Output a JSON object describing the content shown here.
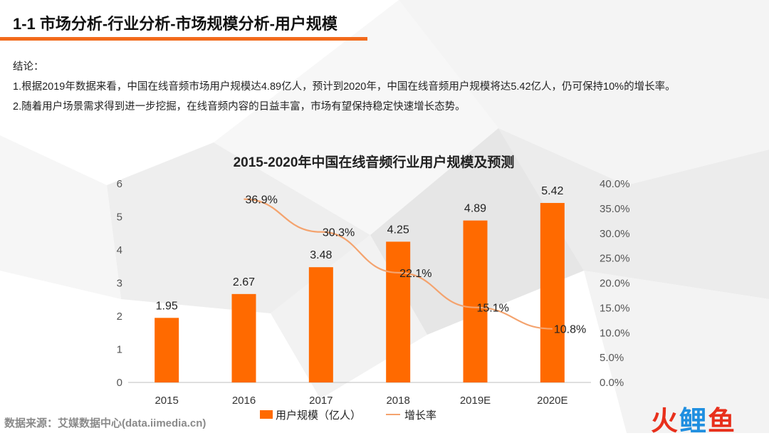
{
  "header": {
    "title": "1-1 市场分析-行业分析-市场规模分析-用户规模",
    "accent_color": "#f26a1b"
  },
  "conclusion": {
    "heading": "结论：",
    "lines": [
      "1.根据2019年数据来看，中国在线音频市场用户规模达4.89亿人，预计到2020年，中国在线音频用户规模将达5.42亿人，仍可保持10%的增长率。",
      "2.随着用户场景需求得到进一步挖掘，在线音频内容的日益丰富，市场有望保持稳定快速增长态势。"
    ]
  },
  "chart_data": {
    "type": "bar",
    "title": "2015-2020年中国在线音频行业用户规模及预测",
    "categories": [
      "2015",
      "2016",
      "2017",
      "2018",
      "2019E",
      "2020E"
    ],
    "series": [
      {
        "name": "用户规模（亿人）",
        "type": "bar",
        "axis": "left",
        "color": "#ff6a00",
        "values": [
          1.95,
          2.67,
          3.48,
          4.25,
          4.89,
          5.42
        ],
        "labels": [
          "1.95",
          "2.67",
          "3.48",
          "4.25",
          "4.89",
          "5.42"
        ]
      },
      {
        "name": "增长率",
        "type": "line",
        "axis": "right",
        "color": "#f4a36e",
        "values": [
          null,
          36.9,
          30.3,
          22.1,
          15.1,
          10.8
        ],
        "labels": [
          "",
          "36.9%",
          "30.3%",
          "22.1%",
          "15.1%",
          "10.8%"
        ]
      }
    ],
    "y_left": {
      "min": 0,
      "max": 6,
      "ticks": [
        "0",
        "1",
        "2",
        "3",
        "4",
        "5",
        "6"
      ]
    },
    "y_right": {
      "min": 0,
      "max": 40,
      "ticks": [
        "0.0%",
        "5.0%",
        "10.0%",
        "15.0%",
        "20.0%",
        "25.0%",
        "30.0%",
        "35.0%",
        "40.0%"
      ]
    },
    "grid": false,
    "legend_position": "bottom"
  },
  "footer": {
    "source": "数据来源：艾媒数据中心(data.iimedia.cn)",
    "logo": {
      "part1": "火",
      "part2": "鲤",
      "part3": "鱼"
    }
  }
}
